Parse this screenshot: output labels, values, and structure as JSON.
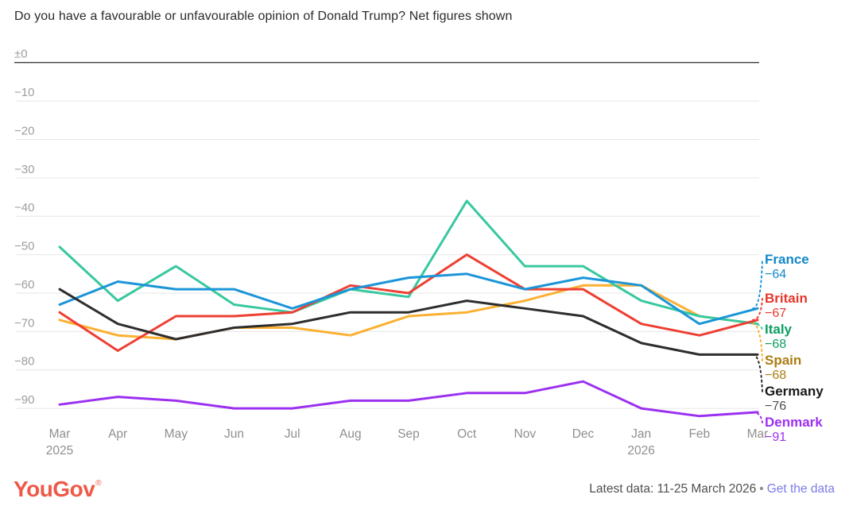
{
  "title": "Do you have a favourable or unfavourable opinion of Donald Trump? Net figures shown",
  "chart_data": {
    "type": "line",
    "grid": true,
    "legend_position": "right",
    "ylabel": "",
    "ylim": [
      -95,
      0
    ],
    "yticks": [
      {
        "value": 0,
        "label": "±0"
      },
      {
        "value": -10,
        "label": "−10"
      },
      {
        "value": -20,
        "label": "−20"
      },
      {
        "value": -30,
        "label": "−30"
      },
      {
        "value": -40,
        "label": "−40"
      },
      {
        "value": -50,
        "label": "−50"
      },
      {
        "value": -60,
        "label": "−60"
      },
      {
        "value": -70,
        "label": "−70"
      },
      {
        "value": -80,
        "label": "−80"
      },
      {
        "value": -90,
        "label": "−90"
      }
    ],
    "x_ticks": [
      {
        "label": "Mar",
        "year": "2025"
      },
      {
        "label": "Apr"
      },
      {
        "label": "May"
      },
      {
        "label": "Jun"
      },
      {
        "label": "Jul"
      },
      {
        "label": "Aug"
      },
      {
        "label": "Sep"
      },
      {
        "label": "Oct"
      },
      {
        "label": "Nov"
      },
      {
        "label": "Dec"
      },
      {
        "label": "Jan",
        "year": "2026"
      },
      {
        "label": "Feb"
      },
      {
        "label": "Mar"
      }
    ],
    "series": [
      {
        "name": "Denmark",
        "color": "#9b30f0",
        "label_color": "#9c2ff2",
        "value_color": "#9c2ff2",
        "end_label": "−91",
        "values": [
          -89,
          -87,
          -88,
          -90,
          -90,
          -88,
          -88,
          -86,
          -86,
          -83,
          -90,
          -92,
          -91
        ]
      },
      {
        "name": "Spain",
        "color": "#fbb032",
        "label_color": "#ab7c11",
        "value_color": "#ab7c11",
        "end_label": "−68",
        "values": [
          -67,
          -71,
          -72,
          -69,
          -69,
          -71,
          -66,
          -65,
          -62,
          -58,
          -58,
          -66,
          -68
        ]
      },
      {
        "name": "Italy",
        "color": "#38c8a0",
        "label_color": "#0c9e62",
        "value_color": "#0c9e62",
        "end_label": "−68",
        "values": [
          -48,
          -62,
          -53,
          -63,
          -65,
          -59,
          -61,
          -36,
          -53,
          -53,
          -62,
          -66,
          -68
        ]
      },
      {
        "name": "Britain",
        "color": "#ee3f33",
        "label_color": "#e5372b",
        "value_color": "#e5372b",
        "end_label": "−67",
        "values": [
          -65,
          -75,
          -66,
          -66,
          -65,
          -58,
          -60,
          -50,
          -59,
          -59,
          -68,
          -71,
          -67
        ]
      },
      {
        "name": "France",
        "color": "#1b95d8",
        "label_color": "#1287c8",
        "value_color": "#1287c8",
        "end_label": "−64",
        "values": [
          -63,
          -57,
          -59,
          -59,
          -64,
          -59,
          -56,
          -55,
          -59,
          -56,
          -58,
          -68,
          -64
        ]
      },
      {
        "name": "Germany",
        "color": "#2d2d2d",
        "label_color": "#1a1a1a",
        "value_color": "#4d4d4d",
        "end_label": "−76",
        "values": [
          -59,
          -68,
          -72,
          -69,
          -68,
          -65,
          -65,
          -62,
          -64,
          -66,
          -73,
          -76,
          -76
        ]
      }
    ],
    "legend_order": [
      "France",
      "Britain",
      "Italy",
      "Spain",
      "Germany",
      "Denmark"
    ]
  },
  "footer": {
    "logo": "YouGov",
    "registered": "®",
    "latest_label": "Latest data: 11-25 March 2026",
    "separator": "•",
    "link_label": "Get the data"
  },
  "colors": {
    "grid": "#e6e6e6",
    "zero_axis": "#3f3f3f",
    "tick_text": "#8f8f8f",
    "logo": "#ee5948",
    "link": "#7b7ce9"
  }
}
